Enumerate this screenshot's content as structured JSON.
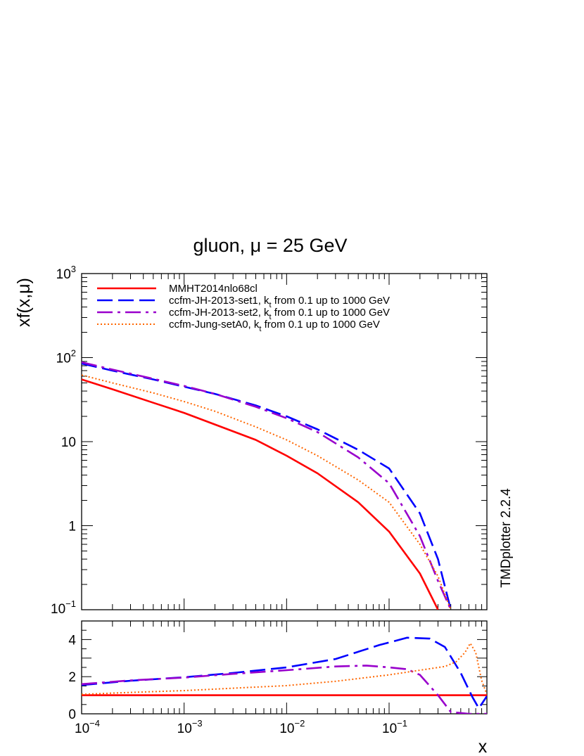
{
  "chart_data": [
    {
      "type": "line",
      "title": "gluon, μ = 25 GeV",
      "ylabel": "xf(x,μ)",
      "xscale": "log",
      "yscale": "log",
      "xlim": [
        0.0001,
        0.9
      ],
      "ylim": [
        0.1,
        1000
      ],
      "y_tick_labels": [
        "10^-1",
        "1",
        "10",
        "10^2",
        "10^3"
      ],
      "legend": "top-left",
      "series": [
        {
          "name": "MMHT2014nlo68cl",
          "color": "#ff0000",
          "style": "solid",
          "x": [
            0.0001,
            0.0002,
            0.0005,
            0.001,
            0.002,
            0.005,
            0.01,
            0.02,
            0.05,
            0.1,
            0.2,
            0.3
          ],
          "y": [
            55,
            42,
            29,
            22,
            16,
            10.5,
            6.8,
            4.2,
            1.9,
            0.85,
            0.27,
            0.1
          ]
        },
        {
          "name": "ccfm-JH-2013-set1, k_t from 0.1 up to 1000 GeV",
          "color": "#0000ff",
          "style": "dashed",
          "x": [
            0.0001,
            0.0002,
            0.0005,
            0.001,
            0.002,
            0.005,
            0.01,
            0.02,
            0.05,
            0.1,
            0.2,
            0.3,
            0.4
          ],
          "y": [
            85,
            70,
            55,
            45,
            37,
            27,
            20,
            14,
            8,
            4.8,
            1.4,
            0.4,
            0.1
          ]
        },
        {
          "name": "ccfm-JH-2013-set2, k_t from 0.1 up to 1000 GeV",
          "color": "#9900cc",
          "style": "dashdot",
          "x": [
            0.0001,
            0.0002,
            0.0005,
            0.001,
            0.002,
            0.005,
            0.01,
            0.02,
            0.05,
            0.1,
            0.2,
            0.3,
            0.4
          ],
          "y": [
            88,
            72,
            56,
            46,
            37,
            26,
            19,
            13,
            6.5,
            3.2,
            0.75,
            0.22,
            0.1
          ]
        },
        {
          "name": "ccfm-Jung-setA0, k_t from 0.1 up to 1000 GeV",
          "color": "#ff6600",
          "style": "dotted",
          "x": [
            0.0001,
            0.0002,
            0.0005,
            0.001,
            0.002,
            0.005,
            0.01,
            0.02,
            0.05,
            0.1,
            0.2,
            0.3,
            0.4
          ],
          "y": [
            62,
            50,
            38,
            30,
            23,
            15,
            10.5,
            6.8,
            3.5,
            1.9,
            0.6,
            0.25,
            0.1
          ]
        }
      ]
    },
    {
      "type": "line",
      "xlabel": "x",
      "xscale": "log",
      "xlim": [
        0.0001,
        0.9
      ],
      "ylim": [
        0,
        5
      ],
      "x_tick_labels": [
        "10^-4",
        "10^-3",
        "10^-2",
        "10^-1"
      ],
      "y_tick_labels": [
        "0",
        "2",
        "4"
      ],
      "series": [
        {
          "color": "#ff0000",
          "style": "solid",
          "x": [
            0.0001,
            0.9
          ],
          "y": [
            1,
            1
          ]
        },
        {
          "color": "#0000ff",
          "style": "dashed",
          "x": [
            0.0001,
            0.0003,
            0.001,
            0.003,
            0.01,
            0.03,
            0.08,
            0.15,
            0.25,
            0.35,
            0.5,
            0.65,
            0.75,
            0.9
          ],
          "y": [
            1.55,
            1.78,
            1.97,
            2.2,
            2.5,
            2.95,
            3.7,
            4.1,
            4.05,
            3.6,
            2.2,
            0.9,
            0.3,
            0.95
          ]
        },
        {
          "color": "#9900cc",
          "style": "dashdot",
          "x": [
            0.0001,
            0.0003,
            0.001,
            0.003,
            0.01,
            0.03,
            0.06,
            0.1,
            0.15,
            0.2,
            0.3,
            0.4,
            0.6,
            0.9
          ],
          "y": [
            1.6,
            1.8,
            1.95,
            2.15,
            2.35,
            2.55,
            2.6,
            2.5,
            2.4,
            2.1,
            1.0,
            0.1,
            0.0,
            0.0
          ]
        },
        {
          "color": "#ff6600",
          "style": "dotted",
          "x": [
            0.0001,
            0.0003,
            0.001,
            0.003,
            0.01,
            0.03,
            0.1,
            0.2,
            0.35,
            0.45,
            0.55,
            0.62,
            0.7,
            0.8,
            0.9
          ],
          "y": [
            1.05,
            1.15,
            1.25,
            1.38,
            1.52,
            1.75,
            2.1,
            2.35,
            2.55,
            2.8,
            3.3,
            3.8,
            3.3,
            1.8,
            1.05
          ]
        }
      ]
    }
  ],
  "version_label": "TMDplotter 2.2.4"
}
